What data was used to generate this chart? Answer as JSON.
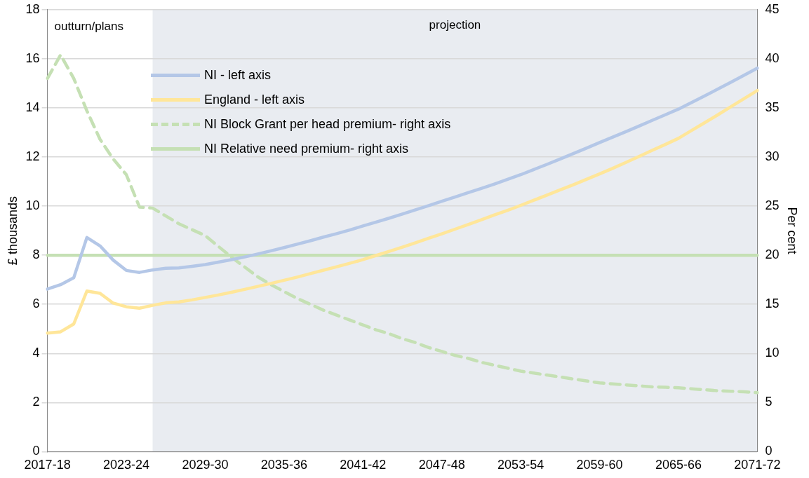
{
  "chart_data": {
    "type": "line",
    "ylabel": "£ thousands",
    "y2label": "Per cent",
    "categories": [
      "2017-18",
      null,
      null,
      null,
      null,
      null,
      "2023-24",
      null,
      null,
      null,
      null,
      null,
      "2029-30",
      null,
      null,
      null,
      null,
      null,
      "2035-36",
      null,
      null,
      null,
      null,
      null,
      "2041-42",
      null,
      null,
      null,
      null,
      null,
      "2047-48",
      null,
      null,
      null,
      null,
      null,
      "2053-54",
      null,
      null,
      null,
      null,
      null,
      "2059-60",
      null,
      null,
      null,
      null,
      null,
      "2065-66",
      null,
      null,
      null,
      null,
      null,
      "2071-72"
    ],
    "series": [
      {
        "name": "NI - left axis",
        "color": "#b4c7e7",
        "axis": "y",
        "line_style": "solid",
        "values": [
          6.62,
          6.8,
          7.08,
          8.72,
          8.38,
          7.8,
          7.38,
          7.3,
          7.4,
          7.47,
          7.48,
          7.55,
          7.62,
          7.72,
          7.82,
          7.93,
          8.05,
          8.18,
          8.31,
          8.45,
          8.59,
          8.74,
          8.88,
          9.03,
          9.19,
          9.35,
          9.51,
          9.68,
          9.85,
          10.02,
          10.2,
          10.37,
          10.55,
          10.72,
          10.9,
          11.09,
          11.28,
          11.49,
          11.7,
          11.92,
          12.14,
          12.36,
          12.59,
          12.81,
          13.03,
          13.26,
          13.49,
          13.72,
          13.95,
          14.22,
          14.49,
          14.77,
          15.05,
          15.33,
          15.62
        ]
      },
      {
        "name": "England  - left axis",
        "color": "#ffe699",
        "axis": "y",
        "line_style": "solid",
        "values": [
          4.83,
          4.88,
          5.2,
          6.54,
          6.45,
          6.05,
          5.9,
          5.84,
          5.96,
          6.06,
          6.1,
          6.18,
          6.28,
          6.38,
          6.49,
          6.61,
          6.73,
          6.85,
          6.98,
          7.11,
          7.25,
          7.39,
          7.53,
          7.67,
          7.82,
          7.99,
          8.16,
          8.33,
          8.51,
          8.69,
          8.87,
          9.06,
          9.25,
          9.44,
          9.64,
          9.83,
          10.03,
          10.24,
          10.45,
          10.66,
          10.87,
          11.09,
          11.31,
          11.54,
          11.78,
          12.02,
          12.27,
          12.51,
          12.76,
          13.08,
          13.4,
          13.72,
          14.05,
          14.38,
          14.71
        ]
      },
      {
        "name": "NI Block Grant per head premium- right axis",
        "color": "#c5e0b4",
        "axis": "y2",
        "line_style": "dashed",
        "values": [
          38.0,
          40.4,
          38.0,
          34.7,
          31.8,
          29.8,
          28.2,
          24.9,
          24.8,
          24.0,
          23.2,
          22.6,
          22.0,
          20.9,
          19.8,
          18.8,
          17.8,
          17.0,
          16.3,
          15.6,
          15.0,
          14.4,
          13.9,
          13.4,
          12.9,
          12.4,
          12.0,
          11.5,
          11.1,
          10.6,
          10.2,
          9.8,
          9.5,
          9.1,
          8.8,
          8.5,
          8.2,
          8.0,
          7.8,
          7.6,
          7.4,
          7.2,
          7.0,
          6.9,
          6.8,
          6.7,
          6.6,
          6.55,
          6.5,
          6.4,
          6.3,
          6.2,
          6.15,
          6.1,
          6.0
        ]
      },
      {
        "name": "NI Relative need premium- right axis",
        "color": "#c5e0b4",
        "axis": "y2",
        "line_style": "solid",
        "values": [
          20,
          20,
          20,
          20,
          20,
          20,
          20,
          20,
          20,
          20,
          20,
          20,
          20,
          20,
          20,
          20,
          20,
          20,
          20,
          20,
          20,
          20,
          20,
          20,
          20,
          20,
          20,
          20,
          20,
          20,
          20,
          20,
          20,
          20,
          20,
          20,
          20,
          20,
          20,
          20,
          20,
          20,
          20,
          20,
          20,
          20,
          20,
          20,
          20,
          20,
          20,
          20,
          20,
          20,
          20
        ]
      }
    ],
    "ylim": [
      0,
      18
    ],
    "yticks": [
      0,
      2,
      4,
      6,
      8,
      10,
      12,
      14,
      16,
      18
    ],
    "y2lim": [
      0,
      45
    ],
    "y2ticks": [
      0,
      5,
      10,
      15,
      20,
      25,
      30,
      35,
      40,
      45
    ],
    "bands": [
      {
        "axis": "x",
        "from": "2025-26",
        "to": "2071-72",
        "label": "projection",
        "color": "#e9ecf1"
      }
    ],
    "annotations": [
      "outturn/plans"
    ],
    "grid": "y",
    "legend": "top left",
    "marker": "none"
  }
}
